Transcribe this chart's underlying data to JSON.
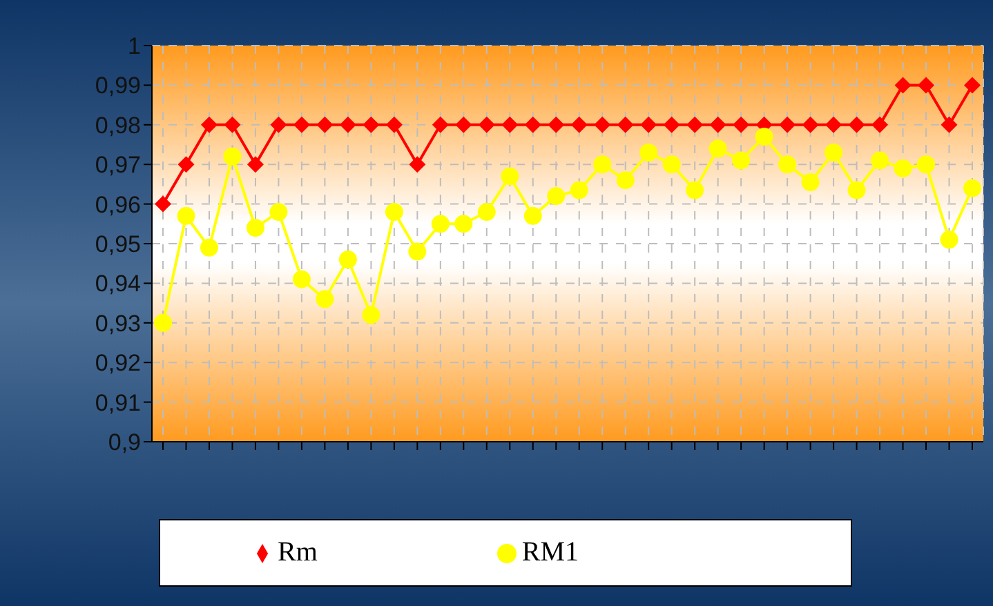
{
  "chart_data": {
    "type": "line",
    "categories": [
      null,
      null,
      null,
      null,
      null,
      null,
      null,
      null,
      null,
      null,
      null,
      null,
      null,
      null,
      null,
      null,
      null,
      null,
      null,
      null,
      null,
      null,
      null,
      null,
      null,
      null,
      null,
      null,
      null,
      null,
      null,
      null,
      null,
      null,
      null,
      null
    ],
    "series": [
      {
        "name": "Rm",
        "color": "#ff0000",
        "marker": "diamond",
        "values": [
          0.96,
          0.97,
          0.98,
          0.98,
          0.97,
          0.98,
          0.98,
          0.98,
          0.98,
          0.98,
          0.98,
          0.97,
          0.98,
          0.98,
          0.98,
          0.98,
          0.98,
          0.98,
          0.98,
          0.98,
          0.98,
          0.98,
          0.98,
          0.98,
          0.98,
          0.98,
          0.98,
          0.98,
          0.98,
          0.98,
          0.98,
          0.98,
          0.99,
          0.99,
          0.98,
          0.99
        ]
      },
      {
        "name": "RM1",
        "color": "#ffff00",
        "marker": "circle",
        "values": [
          0.93,
          0.957,
          0.949,
          0.972,
          0.954,
          0.958,
          0.941,
          0.936,
          0.946,
          0.932,
          0.958,
          0.948,
          0.955,
          0.955,
          0.958,
          0.967,
          0.957,
          0.962,
          0.9635,
          0.97,
          0.966,
          0.973,
          0.97,
          0.9635,
          0.974,
          0.971,
          0.977,
          0.97,
          0.9655,
          0.973,
          0.9635,
          0.971,
          0.969,
          0.97,
          0.951,
          0.964
        ]
      }
    ],
    "ylim": [
      0.9,
      1
    ],
    "yticks": [
      {
        "value": 0.9,
        "label": "0,9"
      },
      {
        "value": 0.91,
        "label": "0,91"
      },
      {
        "value": 0.92,
        "label": "0,92"
      },
      {
        "value": 0.93,
        "label": "0,93"
      },
      {
        "value": 0.94,
        "label": "0,94"
      },
      {
        "value": 0.95,
        "label": "0,95"
      },
      {
        "value": 0.96,
        "label": "0,96"
      },
      {
        "value": 0.97,
        "label": "0,97"
      },
      {
        "value": 0.98,
        "label": "0,98"
      },
      {
        "value": 0.99,
        "label": "0,99"
      },
      {
        "value": 1,
        "label": "1"
      }
    ],
    "grid": true,
    "legend": "bottom",
    "line_style": "solid"
  }
}
